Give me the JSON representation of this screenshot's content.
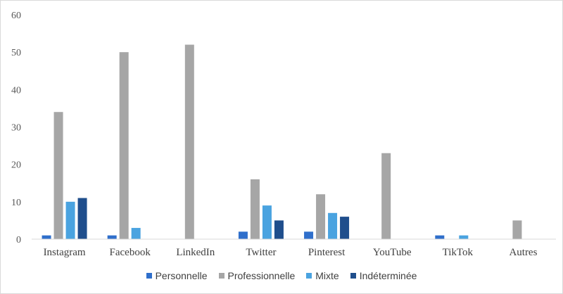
{
  "chart_data": {
    "type": "bar",
    "title": "",
    "xlabel": "",
    "ylabel": "",
    "ylim": [
      0,
      60
    ],
    "yticks": [
      0,
      10,
      20,
      30,
      40,
      50,
      60
    ],
    "grid": false,
    "legend_position": "bottom",
    "categories": [
      "Instagram",
      "Facebook",
      "LinkedIn",
      "Twitter",
      "Pinterest",
      "YouTube",
      "TikTok",
      "Autres"
    ],
    "series": [
      {
        "name": "Personnelle",
        "color": "#2f6fcb",
        "values": [
          1,
          1,
          0,
          2,
          2,
          0,
          1,
          0
        ]
      },
      {
        "name": "Professionnelle",
        "color": "#a6a6a6",
        "values": [
          34,
          50,
          52,
          16,
          12,
          23,
          0,
          5
        ]
      },
      {
        "name": "Mixte",
        "color": "#4aa3e0",
        "values": [
          10,
          3,
          0,
          9,
          7,
          0,
          1,
          0
        ]
      },
      {
        "name": "Indéterminée",
        "color": "#1f4e8c",
        "values": [
          11,
          0,
          0,
          5,
          6,
          0,
          0,
          0
        ]
      }
    ]
  }
}
